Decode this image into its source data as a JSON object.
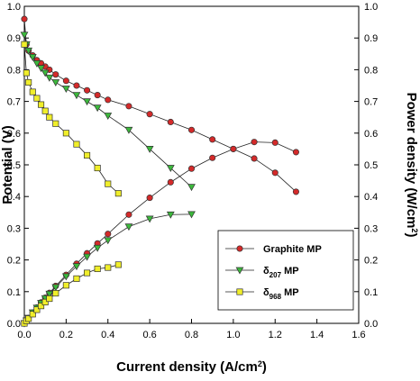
{
  "chart_data": {
    "type": "line",
    "xlabel": "Current density (A/cm2)",
    "ylabel": "Potential (V)",
    "y2label": "Power density (W/cm2)",
    "xlim": [
      0,
      1.6
    ],
    "ylim": [
      0,
      1.0
    ],
    "y2lim": [
      0,
      1.0
    ],
    "xticks": [
      {
        "value": 0,
        "label": "0.0"
      },
      0.2,
      0.4,
      0.6,
      0.8,
      {
        "value": 1,
        "label": "1.0"
      },
      1.2,
      1.4,
      1.6
    ],
    "yticks": [
      {
        "value": 0,
        "label": "0.0"
      },
      0.1,
      0.2,
      0.3,
      0.4,
      0.5,
      0.6,
      0.7,
      0.8,
      0.9,
      {
        "value": 1,
        "label": "1.0"
      }
    ],
    "y2ticks": [
      {
        "value": 0,
        "label": "0.0"
      },
      0.1,
      0.2,
      0.3,
      0.4,
      0.5,
      0.6,
      0.7,
      0.8,
      0.9,
      {
        "value": 1,
        "label": "1.0"
      }
    ],
    "legend": "lower right",
    "series": [
      {
        "name": "Graphite MP",
        "color": "#d42a2a",
        "marker": "circle",
        "x": [
          0,
          0.01,
          0.02,
          0.04,
          0.06,
          0.08,
          0.1,
          0.12,
          0.15,
          0.2,
          0.25,
          0.3,
          0.35,
          0.4,
          0.5,
          0.6,
          0.7,
          0.8,
          0.9,
          1.0,
          1.1,
          1.2,
          1.3
        ],
        "values": [
          0.96,
          0.88,
          0.86,
          0.845,
          0.83,
          0.82,
          0.81,
          0.8,
          0.785,
          0.765,
          0.75,
          0.735,
          0.72,
          0.705,
          0.685,
          0.66,
          0.635,
          0.61,
          0.58,
          0.55,
          0.52,
          0.475,
          0.415
        ]
      },
      {
        "name": "δ207 MP",
        "color": "#3cb83c",
        "marker": "triangle",
        "x": [
          0,
          0.01,
          0.02,
          0.04,
          0.06,
          0.08,
          0.1,
          0.12,
          0.15,
          0.2,
          0.25,
          0.3,
          0.35,
          0.4,
          0.5,
          0.6,
          0.7,
          0.8
        ],
        "values": [
          0.91,
          0.88,
          0.86,
          0.84,
          0.82,
          0.805,
          0.79,
          0.775,
          0.76,
          0.74,
          0.72,
          0.7,
          0.68,
          0.655,
          0.61,
          0.55,
          0.49,
          0.43
        ]
      },
      {
        "name": "δ968 MP",
        "color": "#f0ee2a",
        "marker": "square",
        "x": [
          0,
          0.01,
          0.02,
          0.04,
          0.06,
          0.08,
          0.1,
          0.12,
          0.15,
          0.2,
          0.25,
          0.3,
          0.35,
          0.4,
          0.45
        ],
        "values": [
          0.88,
          0.79,
          0.76,
          0.73,
          0.71,
          0.69,
          0.67,
          0.65,
          0.63,
          0.6,
          0.565,
          0.53,
          0.49,
          0.44,
          0.41
        ]
      },
      {
        "name": "Graphite MP",
        "color": "#d42a2a",
        "marker": "circle",
        "axis": "y2",
        "x": [
          0,
          0.01,
          0.02,
          0.04,
          0.06,
          0.08,
          0.1,
          0.12,
          0.15,
          0.2,
          0.25,
          0.3,
          0.35,
          0.4,
          0.5,
          0.6,
          0.7,
          0.8,
          0.9,
          1.0,
          1.1,
          1.2,
          1.3
        ],
        "values": [
          0,
          0.009,
          0.017,
          0.034,
          0.05,
          0.066,
          0.081,
          0.096,
          0.118,
          0.153,
          0.188,
          0.221,
          0.252,
          0.282,
          0.343,
          0.396,
          0.445,
          0.488,
          0.522,
          0.55,
          0.572,
          0.57,
          0.54
        ]
      },
      {
        "name": "δ207 MP",
        "color": "#3cb83c",
        "marker": "triangle",
        "axis": "y2",
        "x": [
          0,
          0.01,
          0.02,
          0.04,
          0.06,
          0.08,
          0.1,
          0.12,
          0.15,
          0.2,
          0.25,
          0.3,
          0.35,
          0.4,
          0.5,
          0.6,
          0.7,
          0.8
        ],
        "values": [
          0,
          0.009,
          0.017,
          0.034,
          0.049,
          0.064,
          0.079,
          0.093,
          0.114,
          0.148,
          0.18,
          0.21,
          0.238,
          0.262,
          0.305,
          0.33,
          0.343,
          0.344
        ]
      },
      {
        "name": "δ968 MP",
        "color": "#f0ee2a",
        "marker": "square",
        "axis": "y2",
        "x": [
          0,
          0.01,
          0.02,
          0.04,
          0.06,
          0.08,
          0.1,
          0.12,
          0.15,
          0.2,
          0.25,
          0.3,
          0.35,
          0.4,
          0.45
        ],
        "values": [
          0,
          0.008,
          0.015,
          0.029,
          0.043,
          0.055,
          0.067,
          0.078,
          0.095,
          0.12,
          0.141,
          0.159,
          0.172,
          0.176,
          0.185
        ]
      }
    ]
  }
}
